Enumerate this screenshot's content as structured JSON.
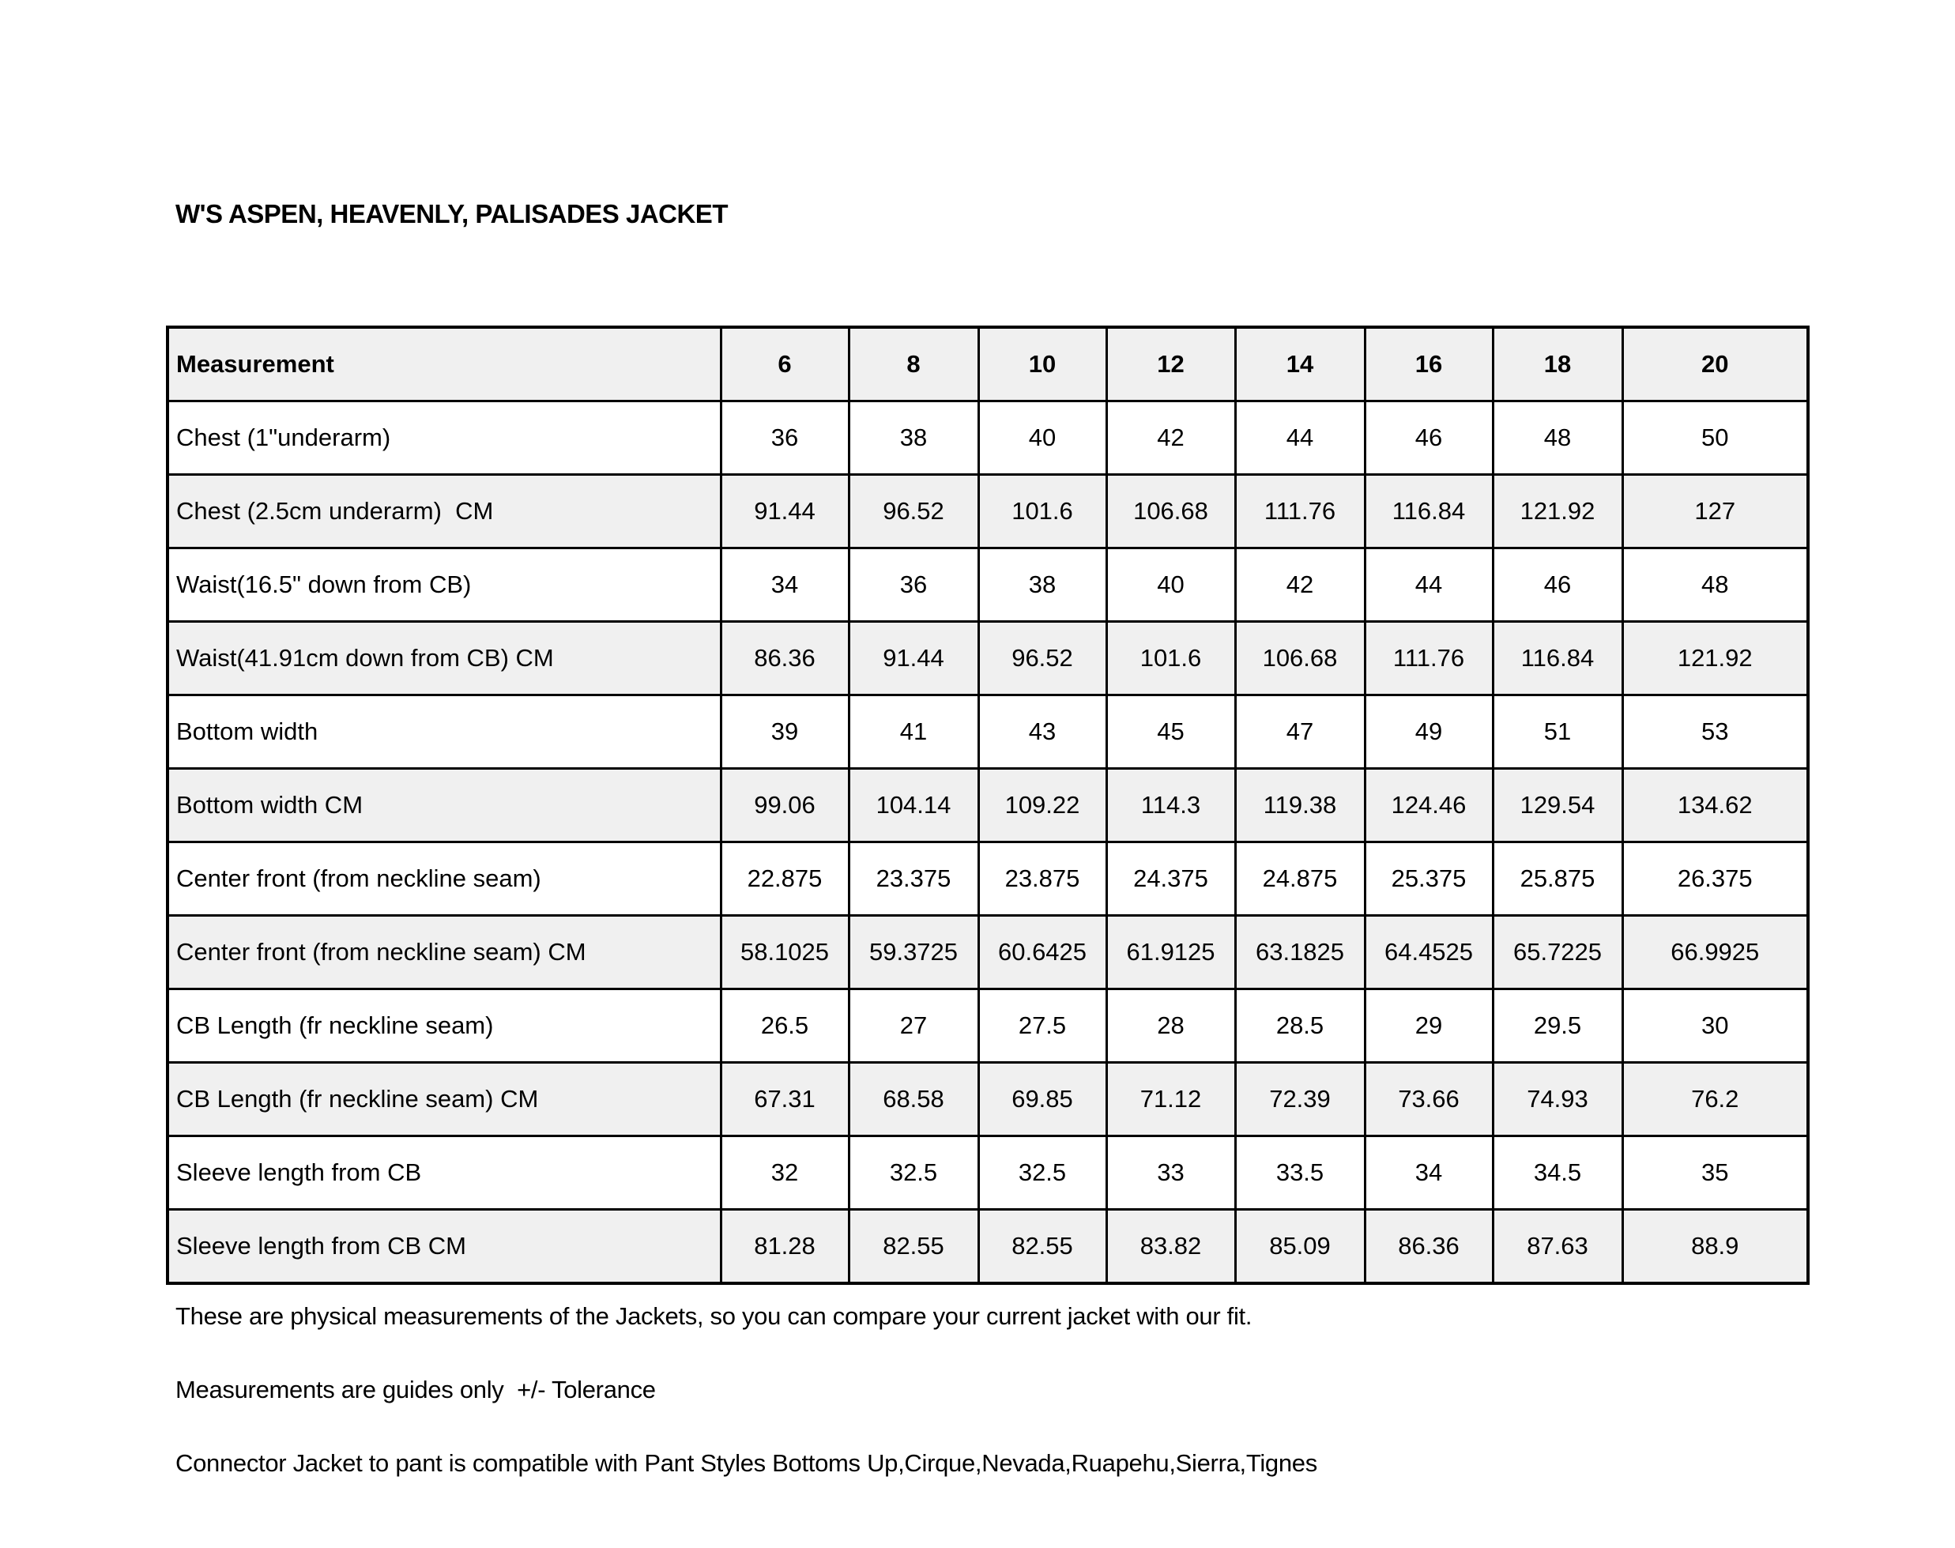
{
  "title": "W'S ASPEN, HEAVENLY, PALISADES JACKET",
  "chart_data": {
    "type": "table",
    "columns": [
      "Measurement",
      "6",
      "8",
      "10",
      "12",
      "14",
      "16",
      "18",
      "20"
    ],
    "rows": [
      {
        "label": "Chest (1\"underarm)",
        "values": [
          "36",
          "38",
          "40",
          "42",
          "44",
          "46",
          "48",
          "50"
        ]
      },
      {
        "label": "Chest (2.5cm underarm)  CM",
        "values": [
          "91.44",
          "96.52",
          "101.6",
          "106.68",
          "111.76",
          "116.84",
          "121.92",
          "127"
        ]
      },
      {
        "label": "Waist(16.5\" down from CB)",
        "values": [
          "34",
          "36",
          "38",
          "40",
          "42",
          "44",
          "46",
          "48"
        ]
      },
      {
        "label": "Waist(41.91cm down from CB) CM",
        "values": [
          "86.36",
          "91.44",
          "96.52",
          "101.6",
          "106.68",
          "111.76",
          "116.84",
          "121.92"
        ]
      },
      {
        "label": "Bottom width",
        "values": [
          "39",
          "41",
          "43",
          "45",
          "47",
          "49",
          "51",
          "53"
        ]
      },
      {
        "label": "Bottom width CM",
        "values": [
          "99.06",
          "104.14",
          "109.22",
          "114.3",
          "119.38",
          "124.46",
          "129.54",
          "134.62"
        ]
      },
      {
        "label": "Center front (from neckline seam)",
        "values": [
          "22.875",
          "23.375",
          "23.875",
          "24.375",
          "24.875",
          "25.375",
          "25.875",
          "26.375"
        ]
      },
      {
        "label": "Center front (from neckline seam) CM",
        "values": [
          "58.1025",
          "59.3725",
          "60.6425",
          "61.9125",
          "63.1825",
          "64.4525",
          "65.7225",
          "66.9925"
        ]
      },
      {
        "label": "CB Length (fr neckline seam)",
        "values": [
          "26.5",
          "27",
          "27.5",
          "28",
          "28.5",
          "29",
          "29.5",
          "30"
        ]
      },
      {
        "label": "CB Length (fr neckline seam) CM",
        "values": [
          "67.31",
          "68.58",
          "69.85",
          "71.12",
          "72.39",
          "73.66",
          "74.93",
          "76.2"
        ]
      },
      {
        "label": "Sleeve length from CB",
        "values": [
          "32",
          "32.5",
          "32.5",
          "33",
          "33.5",
          "34",
          "34.5",
          "35"
        ]
      },
      {
        "label": "Sleeve length from CB CM",
        "values": [
          "81.28",
          "82.55",
          "82.55",
          "83.82",
          "85.09",
          "86.36",
          "87.63",
          "88.9"
        ]
      }
    ]
  },
  "notes": [
    "These are physical measurements of the Jackets, so you can compare your current jacket with our fit.",
    "Measurements are guides only  +/- Tolerance",
    "Connector Jacket to pant is compatible with Pant Styles Bottoms Up,Cirque,Nevada,Ruapehu,Sierra,Tignes"
  ],
  "colors": {
    "background": "#ffffff",
    "header_fill": "#f0f0f0",
    "alt_row_fill": "#f0f0f0",
    "border": "#000000",
    "text": "#000000"
  }
}
